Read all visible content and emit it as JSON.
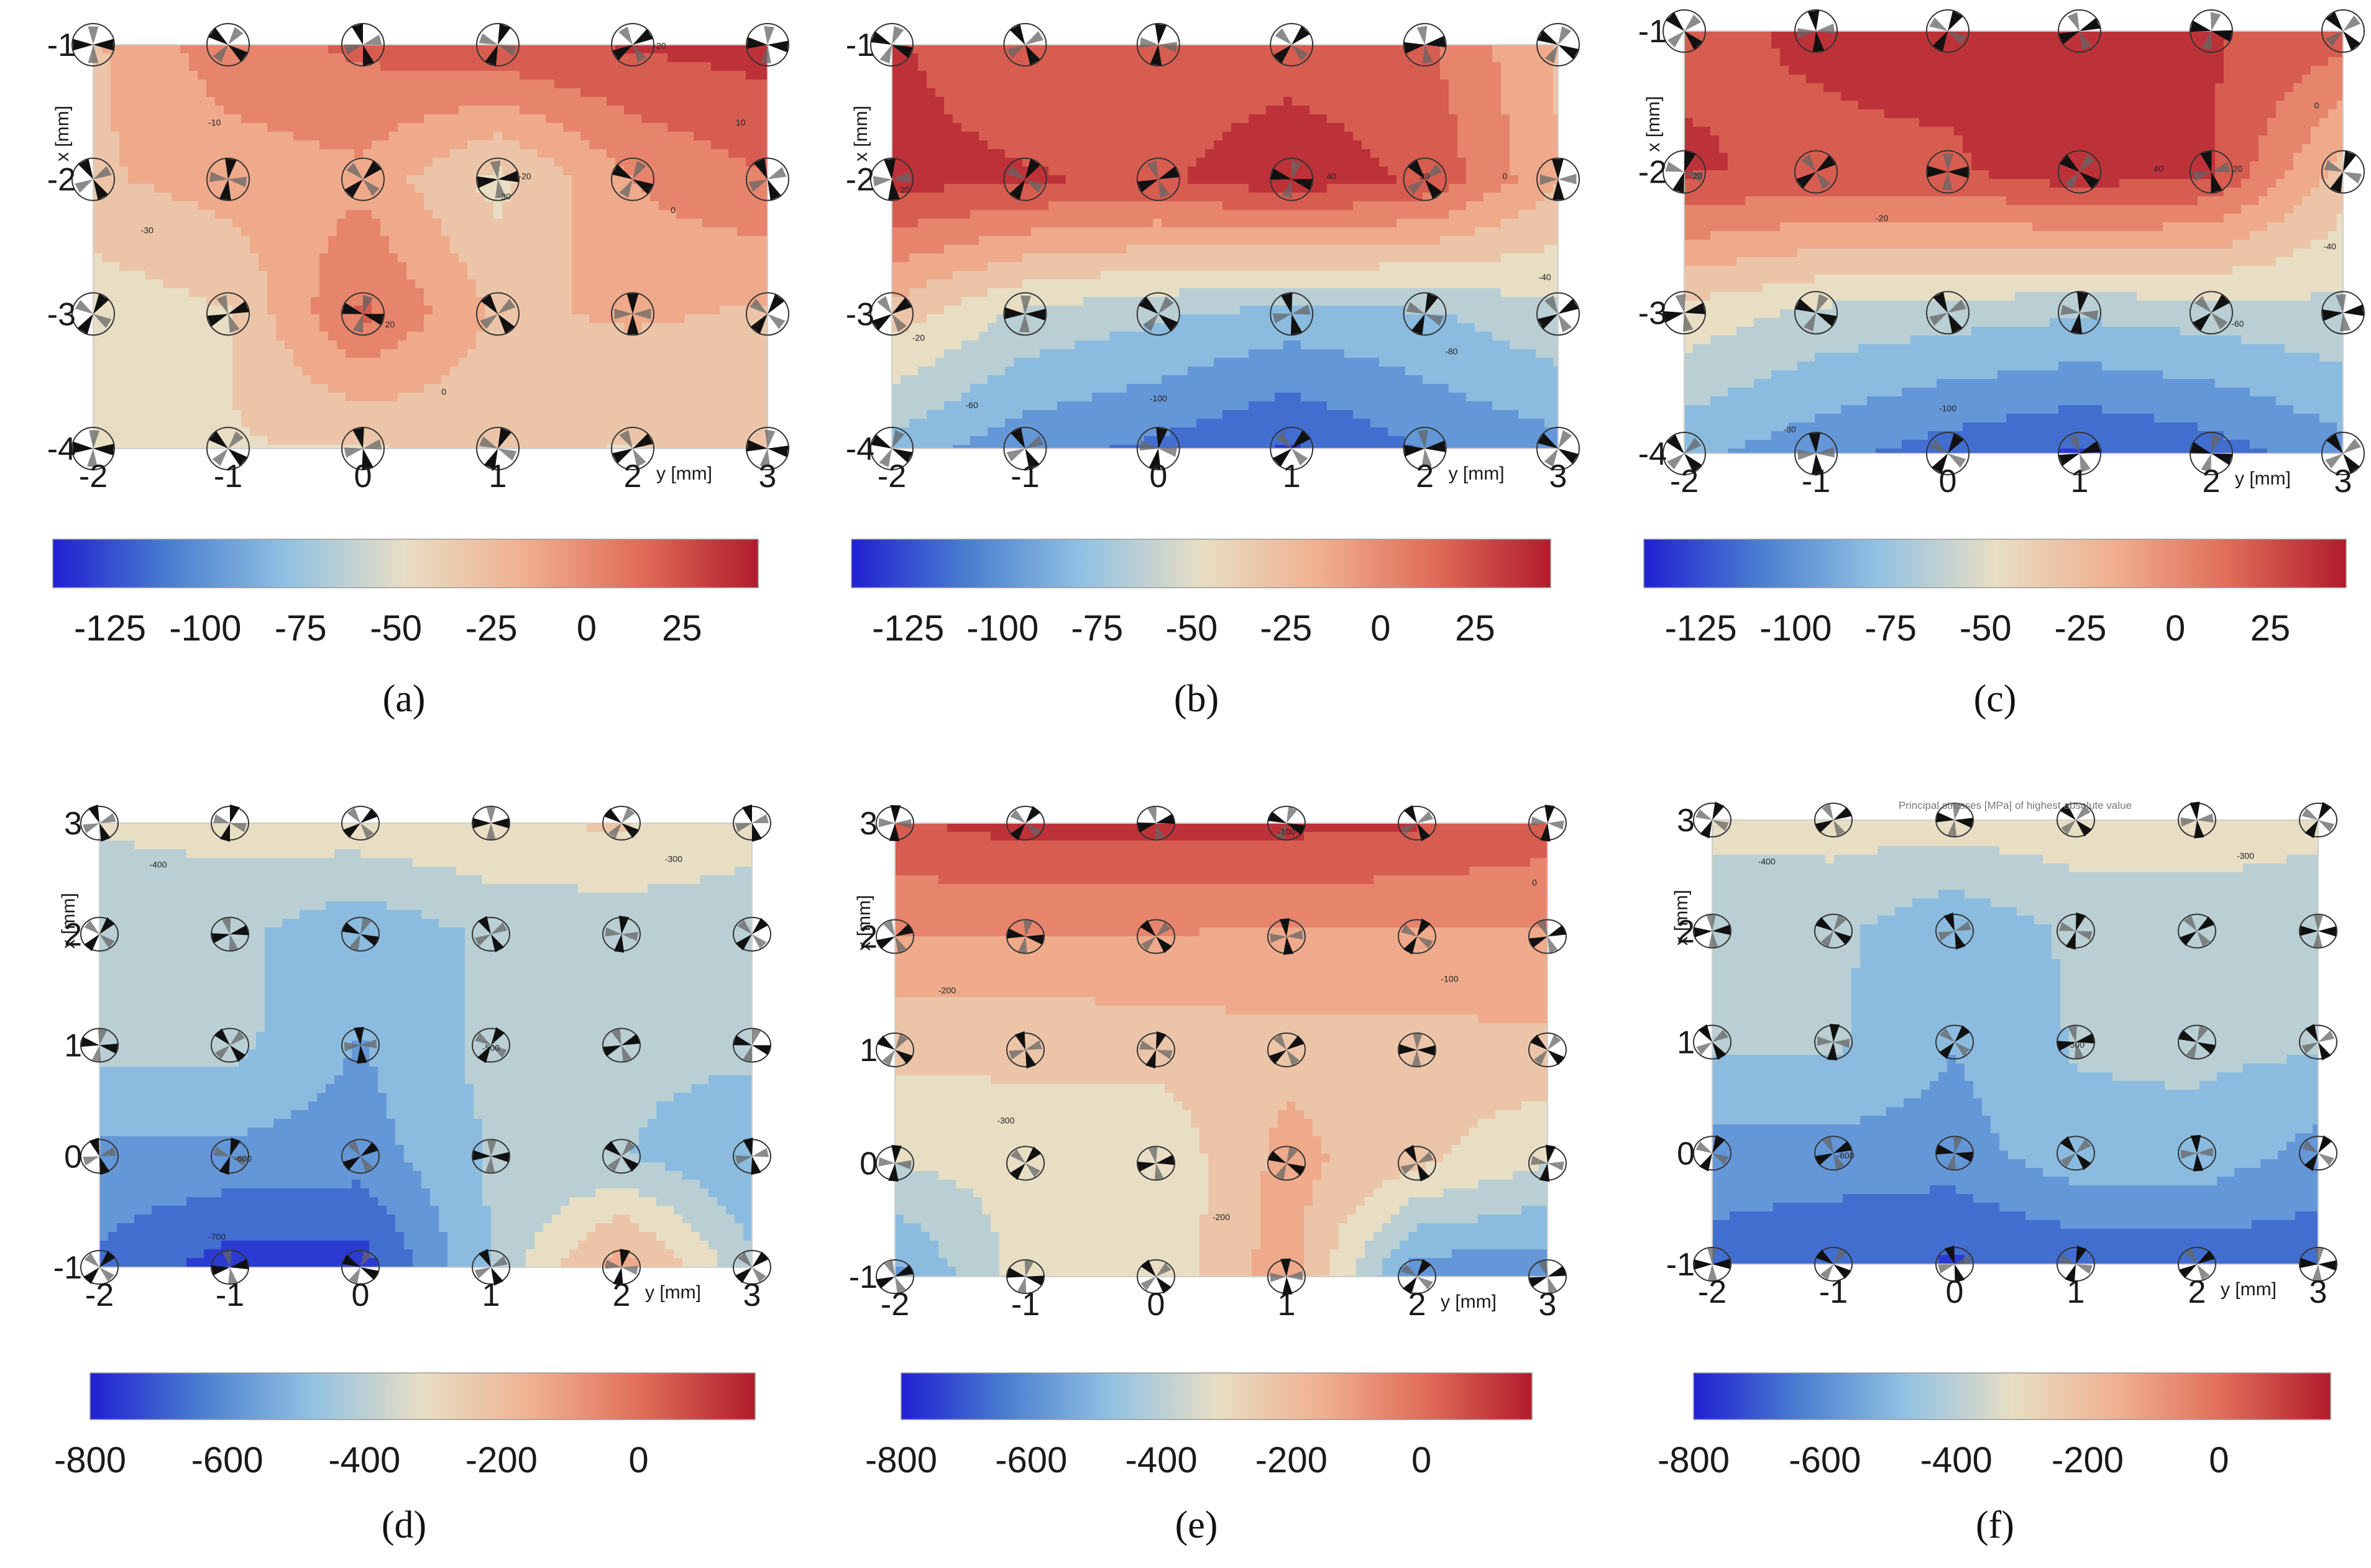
{
  "chart_data": [
    {
      "type": "heatmap",
      "label": "(a)",
      "xlabel": "y [mm]",
      "ylabel": "x [mm]",
      "x_ticks": [
        "-2",
        "-1",
        "0",
        "1",
        "2",
        "3"
      ],
      "y_ticks": [
        "-1",
        "-2",
        "-3",
        "-4"
      ],
      "xlim": [
        -2,
        3
      ],
      "ylim": [
        -4,
        -1
      ],
      "colorbar": {
        "range": [
          -140,
          45
        ],
        "tick_values": [
          -125,
          -100,
          -75,
          -50,
          -25,
          0,
          25
        ],
        "tick_labels": [
          "-125",
          "-100",
          "-75",
          "-50",
          "-25",
          "0",
          "25"
        ]
      },
      "contour_labels": [
        {
          "text": "-20",
          "y": 2.2,
          "x": -1.03
        },
        {
          "text": "10",
          "y": 2.8,
          "x": -1.6
        },
        {
          "text": "-10",
          "y": -1.1,
          "x": -1.6
        },
        {
          "text": "-20",
          "y": 1.2,
          "x": -2.0
        },
        {
          "text": "-30",
          "y": 1.05,
          "x": -2.15
        },
        {
          "text": "0",
          "y": 2.3,
          "x": -2.25
        },
        {
          "text": "-30",
          "y": -1.6,
          "x": -2.4
        },
        {
          "text": "20",
          "y": 0.2,
          "x": -3.1
        },
        {
          "text": "0",
          "y": 0.6,
          "x": -3.6
        }
      ],
      "values": [
        [
          -25,
          5,
          15,
          25,
          30,
          35
        ],
        [
          -25,
          -15,
          -10,
          -45,
          -5,
          10
        ],
        [
          -50,
          -40,
          15,
          -25,
          -20,
          -25
        ],
        [
          -40,
          -40,
          -40,
          -35,
          -40,
          -25
        ]
      ]
    },
    {
      "type": "heatmap",
      "label": "(b)",
      "xlabel": "y [mm]",
      "ylabel": "x [mm]",
      "x_ticks": [
        "-2",
        "-1",
        "0",
        "1",
        "2",
        "3"
      ],
      "y_ticks": [
        "-1",
        "-2",
        "-3",
        "-4"
      ],
      "xlim": [
        -2,
        3
      ],
      "ylim": [
        -4,
        -1
      ],
      "colorbar": {
        "range": [
          -140,
          45
        ],
        "tick_values": [
          -125,
          -100,
          -75,
          -50,
          -25,
          0,
          25
        ],
        "tick_labels": [
          "-125",
          "-100",
          "-75",
          "-50",
          "-25",
          "0",
          "25"
        ]
      },
      "contour_labels": [
        {
          "text": "40",
          "y": 1.3,
          "x": -2.0
        },
        {
          "text": "20",
          "y": 2.0,
          "x": -2.0
        },
        {
          "text": "0",
          "y": 2.6,
          "x": -2.0
        },
        {
          "text": "20",
          "y": -1.9,
          "x": -2.1
        },
        {
          "text": "-40",
          "y": 2.9,
          "x": -2.75
        },
        {
          "text": "-20",
          "y": -1.8,
          "x": -3.2
        },
        {
          "text": "-80",
          "y": 2.2,
          "x": -3.3
        },
        {
          "text": "-60",
          "y": -1.4,
          "x": -3.7
        },
        {
          "text": "-100",
          "y": 0.0,
          "x": -3.65
        }
      ],
      "values": [
        [
          30,
          15,
          20,
          20,
          15,
          -25
        ],
        [
          35,
          30,
          25,
          40,
          25,
          -20
        ],
        [
          -30,
          -60,
          -70,
          -80,
          -75,
          -60
        ],
        [
          -80,
          -100,
          -110,
          -125,
          -105,
          -95
        ]
      ]
    },
    {
      "type": "heatmap",
      "label": "(c)",
      "xlabel": "y [mm]",
      "ylabel": "x [mm]",
      "x_ticks": [
        "-2",
        "-1",
        "0",
        "1",
        "2",
        "3"
      ],
      "y_ticks": [
        "-1",
        "-2",
        "-3",
        "-4"
      ],
      "xlim": [
        -2,
        3
      ],
      "ylim": [
        -4,
        -1
      ],
      "colorbar": {
        "range": [
          -140,
          45
        ],
        "tick_values": [
          -125,
          -100,
          -75,
          -50,
          -25,
          0,
          25
        ],
        "tick_labels": [
          "-125",
          "-100",
          "-75",
          "-50",
          "-25",
          "0",
          "25"
        ]
      },
      "contour_labels": [
        {
          "text": "0",
          "y": 2.8,
          "x": -1.55
        },
        {
          "text": "40",
          "y": 1.6,
          "x": -2.0
        },
        {
          "text": "20",
          "y": 2.2,
          "x": -2.0
        },
        {
          "text": "20",
          "y": -1.9,
          "x": -2.05
        },
        {
          "text": "-20",
          "y": -0.5,
          "x": -2.35
        },
        {
          "text": "-40",
          "y": 2.9,
          "x": -2.55
        },
        {
          "text": "-60",
          "y": 2.2,
          "x": -3.1
        },
        {
          "text": "-80",
          "y": -1.2,
          "x": -3.85
        },
        {
          "text": "-100",
          "y": 0.0,
          "x": -3.7
        }
      ],
      "values": [
        [
          25,
          30,
          35,
          30,
          30,
          20
        ],
        [
          30,
          25,
          25,
          40,
          30,
          -30
        ],
        [
          -45,
          -60,
          -65,
          -70,
          -65,
          -60
        ],
        [
          -85,
          -100,
          -115,
          -125,
          -115,
          -95
        ]
      ]
    },
    {
      "type": "heatmap",
      "label": "(d)",
      "xlabel": "y [mm]",
      "ylabel": "x [mm]",
      "x_ticks": [
        "-2",
        "-1",
        "0",
        "1",
        "2",
        "3"
      ],
      "y_ticks": [
        "3",
        "2",
        "1",
        "0",
        "-1"
      ],
      "xlim": [
        -2,
        3
      ],
      "ylim": [
        -1,
        3
      ],
      "colorbar": {
        "range": [
          -800,
          170
        ],
        "tick_values": [
          -800,
          -600,
          -400,
          -200,
          0
        ],
        "tick_labels": [
          "-800",
          "-600",
          "-400",
          "-200",
          "0"
        ]
      },
      "contour_labels": [
        {
          "text": "-400",
          "y": -1.55,
          "x": 2.6
        },
        {
          "text": "-300",
          "y": 2.4,
          "x": 2.65
        },
        {
          "text": "-500",
          "y": 1.0,
          "x": 0.95
        },
        {
          "text": "-600",
          "y": -0.9,
          "x": -0.05
        },
        {
          "text": "-700",
          "y": -1.1,
          "x": -0.75
        }
      ],
      "values": [
        [
          -350,
          -330,
          -300,
          -280,
          -260,
          -320
        ],
        [
          -420,
          -420,
          -520,
          -430,
          -420,
          -420
        ],
        [
          -420,
          -420,
          -540,
          -420,
          -420,
          -420
        ],
        [
          -560,
          -560,
          -580,
          -440,
          -440,
          -540
        ],
        [
          -640,
          -760,
          -760,
          -440,
          -120,
          -430
        ]
      ]
    },
    {
      "type": "heatmap",
      "label": "(e)",
      "xlabel": "y [mm]",
      "ylabel": "x [mm]",
      "x_ticks": [
        "-2",
        "-1",
        "0",
        "1",
        "2",
        "3"
      ],
      "y_ticks": [
        "3",
        "2",
        "1",
        "0",
        "-1"
      ],
      "xlim": [
        -2,
        3
      ],
      "ylim": [
        -1,
        3
      ],
      "colorbar": {
        "range": [
          -800,
          170
        ],
        "tick_values": [
          -800,
          -600,
          -400,
          -200,
          0
        ],
        "tick_labels": [
          "-800",
          "-600",
          "-400",
          "-200",
          "0"
        ]
      },
      "contour_labels": [
        {
          "text": "-100",
          "y": 1.0,
          "x": 2.9
        },
        {
          "text": "0",
          "y": 2.9,
          "x": 2.45
        },
        {
          "text": "-100",
          "y": 2.25,
          "x": 1.6
        },
        {
          "text": "-200",
          "y": -1.6,
          "x": 1.5
        },
        {
          "text": "-300",
          "y": -1.15,
          "x": 0.35
        },
        {
          "text": "-200",
          "y": 0.5,
          "x": -0.5
        }
      ],
      "values": [
        [
          70,
          120,
          110,
          110,
          90,
          40
        ],
        [
          -100,
          -100,
          -100,
          -110,
          -110,
          -110
        ],
        [
          -250,
          -250,
          -240,
          -210,
          -220,
          -200
        ],
        [
          -360,
          -320,
          -350,
          -150,
          -250,
          -360
        ],
        [
          -560,
          -320,
          -340,
          -130,
          -600,
          -600
        ]
      ]
    },
    {
      "type": "heatmap",
      "label": "(f)",
      "title": "Principal stresses [MPa] of highest absolute value",
      "xlabel": "y [mm]",
      "ylabel": "x [mm]",
      "x_ticks": [
        "-2",
        "-1",
        "0",
        "1",
        "2",
        "3"
      ],
      "y_ticks": [
        "3",
        "2",
        "1",
        "0",
        "-1"
      ],
      "xlim": [
        -2,
        3
      ],
      "ylim": [
        -1,
        3
      ],
      "colorbar": {
        "range": [
          -800,
          170
        ],
        "tick_values": [
          -800,
          -600,
          -400,
          -200,
          0
        ],
        "tick_labels": [
          "-800",
          "-600",
          "-400",
          "-200",
          "0"
        ]
      },
      "contour_labels": [
        {
          "text": "-400",
          "y": -1.55,
          "x": 2.6
        },
        {
          "text": "-300",
          "y": 2.4,
          "x": 2.65
        },
        {
          "text": "-500",
          "y": 1.0,
          "x": 0.95
        },
        {
          "text": "-600",
          "y": -0.9,
          "x": -0.05
        }
      ],
      "values": [
        [
          -330,
          -320,
          -320,
          -300,
          -290,
          -330
        ],
        [
          -430,
          -430,
          -520,
          -430,
          -430,
          -430
        ],
        [
          -430,
          -430,
          -530,
          -440,
          -430,
          -430
        ],
        [
          -570,
          -570,
          -580,
          -470,
          -470,
          -570
        ],
        [
          -660,
          -700,
          -720,
          -700,
          -690,
          -680
        ]
      ]
    }
  ],
  "colormap": [
    "#2020d0",
    "#4a7fd0",
    "#92c2e2",
    "#e8dec4",
    "#f0b090",
    "#e06c58",
    "#b01c2c"
  ]
}
